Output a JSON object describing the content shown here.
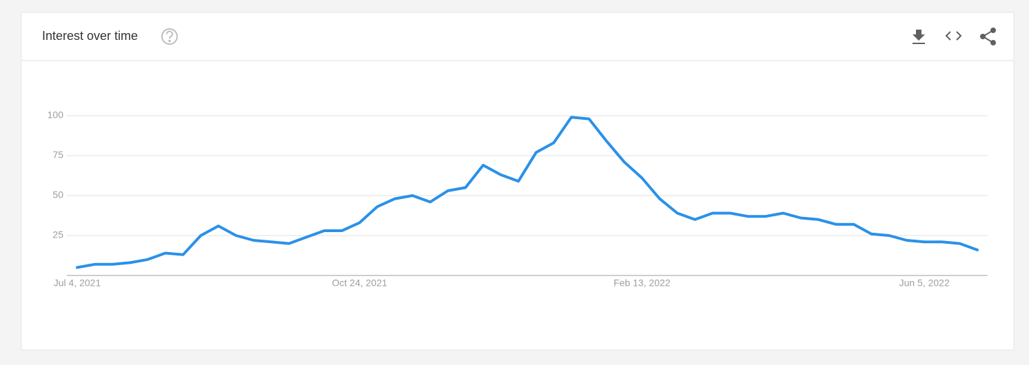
{
  "chart_data": {
    "type": "line",
    "title": "Interest over time",
    "categories": [
      "Jul 4, 2021",
      null,
      null,
      null,
      null,
      null,
      null,
      null,
      null,
      null,
      null,
      null,
      null,
      null,
      null,
      null,
      "Oct 24, 2021",
      null,
      null,
      null,
      null,
      null,
      null,
      null,
      null,
      null,
      null,
      null,
      null,
      null,
      null,
      null,
      "Feb 13, 2022",
      null,
      null,
      null,
      null,
      null,
      null,
      null,
      null,
      null,
      null,
      null,
      null,
      null,
      null,
      null,
      "Jun 5, 2022",
      null,
      null,
      null
    ],
    "values": [
      5,
      7,
      7,
      8,
      10,
      14,
      13,
      25,
      31,
      25,
      22,
      21,
      20,
      24,
      28,
      28,
      33,
      43,
      48,
      50,
      46,
      53,
      55,
      69,
      63,
      59,
      77,
      83,
      99,
      98,
      84,
      71,
      61,
      48,
      39,
      35,
      39,
      39,
      37,
      37,
      39,
      36,
      35,
      32,
      32,
      26,
      25,
      22,
      21,
      21,
      20,
      16
    ],
    "color": "#2a91e8",
    "ylim": [
      0,
      100
    ],
    "yticks": [
      25,
      50,
      75,
      100
    ],
    "grid": true
  }
}
